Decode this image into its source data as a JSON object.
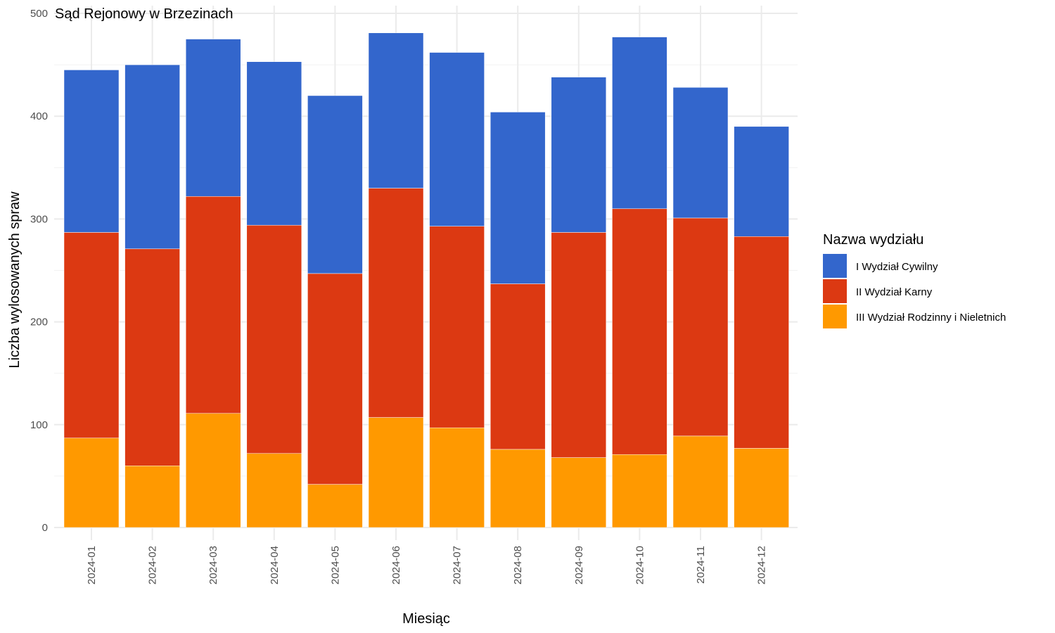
{
  "chart_data": {
    "type": "bar",
    "stacked": true,
    "title": "Sąd Rejonowy w Brzezinach",
    "xlabel": "Miesiąc",
    "ylabel": "Liczba wylosowanych spraw",
    "ylim": [
      0,
      500
    ],
    "yticks": [
      "0",
      "100",
      "200",
      "300",
      "400",
      "500"
    ],
    "grid": true,
    "legend_position": "right",
    "legend_title": "Nazwa wydziału",
    "categories": [
      "2024-01",
      "2024-02",
      "2024-03",
      "2024-04",
      "2024-05",
      "2024-06",
      "2024-07",
      "2024-08",
      "2024-09",
      "2024-10",
      "2024-11",
      "2024-12"
    ],
    "series": [
      {
        "name": "III Wydział Rodzinny i Nieletnich",
        "color": "#FF9900",
        "values": [
          87,
          60,
          111,
          72,
          42,
          107,
          97,
          76,
          68,
          71,
          89,
          77
        ]
      },
      {
        "name": "II Wydział Karny",
        "color": "#DC3912",
        "values": [
          200,
          211,
          211,
          222,
          205,
          223,
          196,
          161,
          219,
          239,
          212,
          206
        ]
      },
      {
        "name": "I Wydział Cywilny",
        "color": "#3366CC",
        "values": [
          158,
          179,
          153,
          159,
          173,
          151,
          169,
          167,
          151,
          167,
          127,
          107
        ]
      }
    ],
    "legend_order": [
      "I Wydział Cywilny",
      "II Wydział Karny",
      "III Wydział Rodzinny i Nieletnich"
    ]
  }
}
